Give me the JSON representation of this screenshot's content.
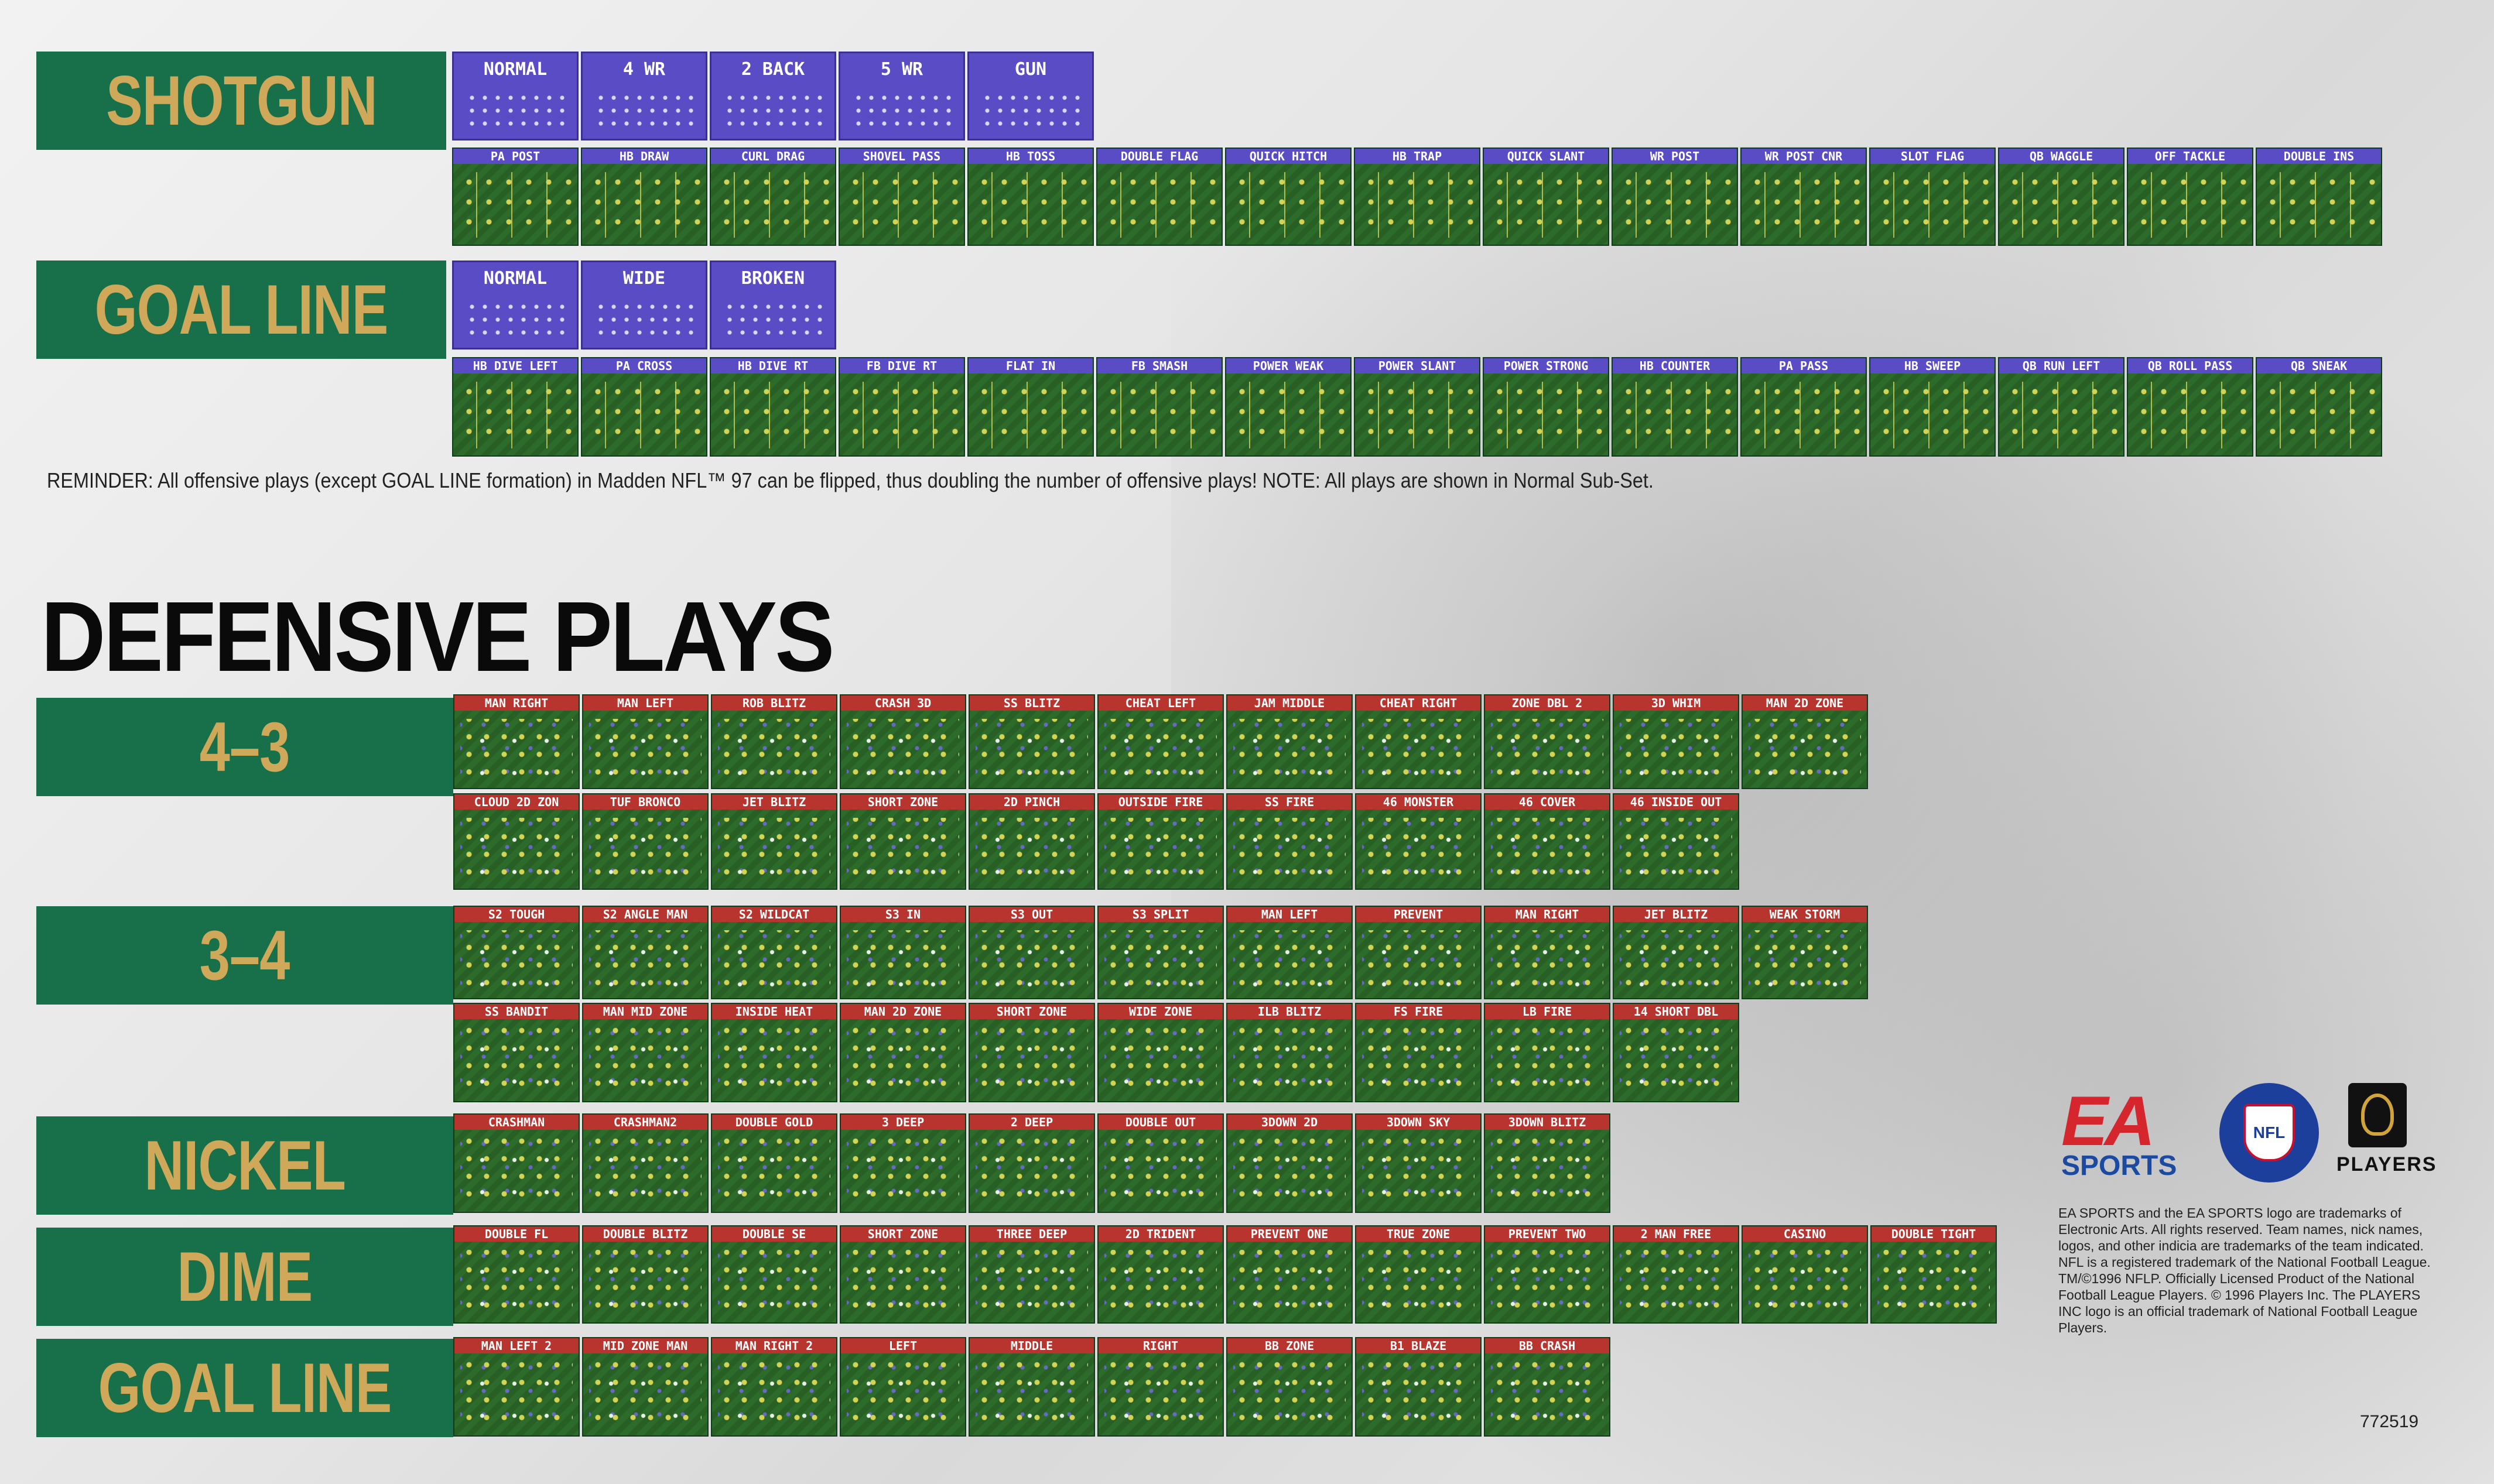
{
  "offense": {
    "shotgun": {
      "title": "SHOTGUN",
      "formations": [
        "NORMAL",
        "4 WR",
        "2 BACK",
        "5 WR",
        "GUN"
      ],
      "plays": [
        "PA POST",
        "HB DRAW",
        "CURL DRAG",
        "SHOVEL PASS",
        "HB TOSS",
        "DOUBLE FLAG",
        "QUICK HITCH",
        "HB TRAP",
        "QUICK SLANT",
        "WR POST",
        "WR POST CNR",
        "SLOT FLAG",
        "QB WAGGLE",
        "OFF TACKLE",
        "DOUBLE INS"
      ]
    },
    "goal_line": {
      "title": "GOAL LINE",
      "formations": [
        "NORMAL",
        "WIDE",
        "BROKEN"
      ],
      "plays": [
        "HB DIVE LEFT",
        "PA CROSS",
        "HB DIVE RT",
        "FB DIVE RT",
        "FLAT IN",
        "FB SMASH",
        "POWER WEAK",
        "POWER SLANT",
        "POWER STRONG",
        "HB COUNTER",
        "PA PASS",
        "HB SWEEP",
        "QB RUN LEFT",
        "QB ROLL PASS",
        "QB SNEAK"
      ]
    }
  },
  "reminder": "REMINDER: All offensive plays (except GOAL LINE formation) in Madden NFL™ 97 can be flipped, thus doubling the number of offensive plays!   NOTE: All plays are shown in Normal Sub-Set.",
  "defense_title": "DEFENSIVE PLAYS",
  "defense": {
    "four_three": {
      "title": "4–3",
      "row1": [
        "MAN RIGHT",
        "MAN LEFT",
        "ROB BLITZ",
        "CRASH 3D",
        "SS BLITZ",
        "CHEAT LEFT",
        "JAM MIDDLE",
        "CHEAT RIGHT",
        "ZONE DBL 2",
        "3D WHIM",
        "MAN 2D ZONE"
      ],
      "row2": [
        "CLOUD 2D ZON",
        "TUF BRONCO",
        "JET BLITZ",
        "SHORT ZONE",
        "2D PINCH",
        "OUTSIDE FIRE",
        "SS FIRE",
        "46 MONSTER",
        "46 COVER",
        "46 INSIDE OUT"
      ]
    },
    "three_four": {
      "title": "3–4",
      "row1": [
        "S2 TOUGH",
        "S2 ANGLE MAN",
        "S2 WILDCAT",
        "S3 IN",
        "S3 OUT",
        "S3 SPLIT",
        "MAN LEFT",
        "PREVENT",
        "MAN RIGHT",
        "JET BLITZ",
        "WEAK STORM"
      ],
      "row2": [
        "SS BANDIT",
        "MAN MID ZONE",
        "INSIDE HEAT",
        "MAN 2D ZONE",
        "SHORT ZONE",
        "WIDE ZONE",
        "ILB BLITZ",
        "FS FIRE",
        "LB FIRE",
        "14 SHORT DBL"
      ]
    },
    "nickel": {
      "title": "NICKEL",
      "row1": [
        "CRASHMAN",
        "CRASHMAN2",
        "DOUBLE GOLD",
        "3 DEEP",
        "2 DEEP",
        "DOUBLE OUT",
        "3DOWN 2D",
        "3DOWN SKY",
        "3DOWN BLITZ"
      ]
    },
    "dime": {
      "title": "DIME",
      "row1": [
        "DOUBLE FL",
        "DOUBLE BLITZ",
        "DOUBLE SE",
        "SHORT ZONE",
        "THREE DEEP",
        "2D TRIDENT",
        "PREVENT ONE",
        "TRUE ZONE",
        "PREVENT TWO",
        "2 MAN FREE",
        "CASINO",
        "DOUBLE TIGHT"
      ]
    },
    "goal_line": {
      "title": "GOAL LINE",
      "row1": [
        "MAN LEFT 2",
        "MID ZONE MAN",
        "MAN RIGHT 2",
        "LEFT",
        "MIDDLE",
        "RIGHT",
        "BB ZONE",
        "B1 BLAZE",
        "BB CRASH"
      ]
    }
  },
  "logos": {
    "ea_mark": "EA",
    "ea_sports": "SPORTS",
    "nfl": "NFL",
    "players": "PLAYERS"
  },
  "legal": "EA SPORTS and the EA SPORTS logo are trademarks of Electronic Arts. All rights reserved. Team names, nick names, logos, and other indicia are trademarks of the team indicated. NFL is a registered trademark of the National Football League. TM/©1996 NFLP. Officially Licensed Product of the National Football League Players. © 1996 Players Inc. The PLAYERS INC logo is an official trademark of National Football League Players.",
  "code": "772519",
  "colors": {
    "banner_green": "#17704a",
    "banner_gold": "#cfa85a",
    "offense_label": "#5a4cc4",
    "defense_label": "#b8352f"
  }
}
